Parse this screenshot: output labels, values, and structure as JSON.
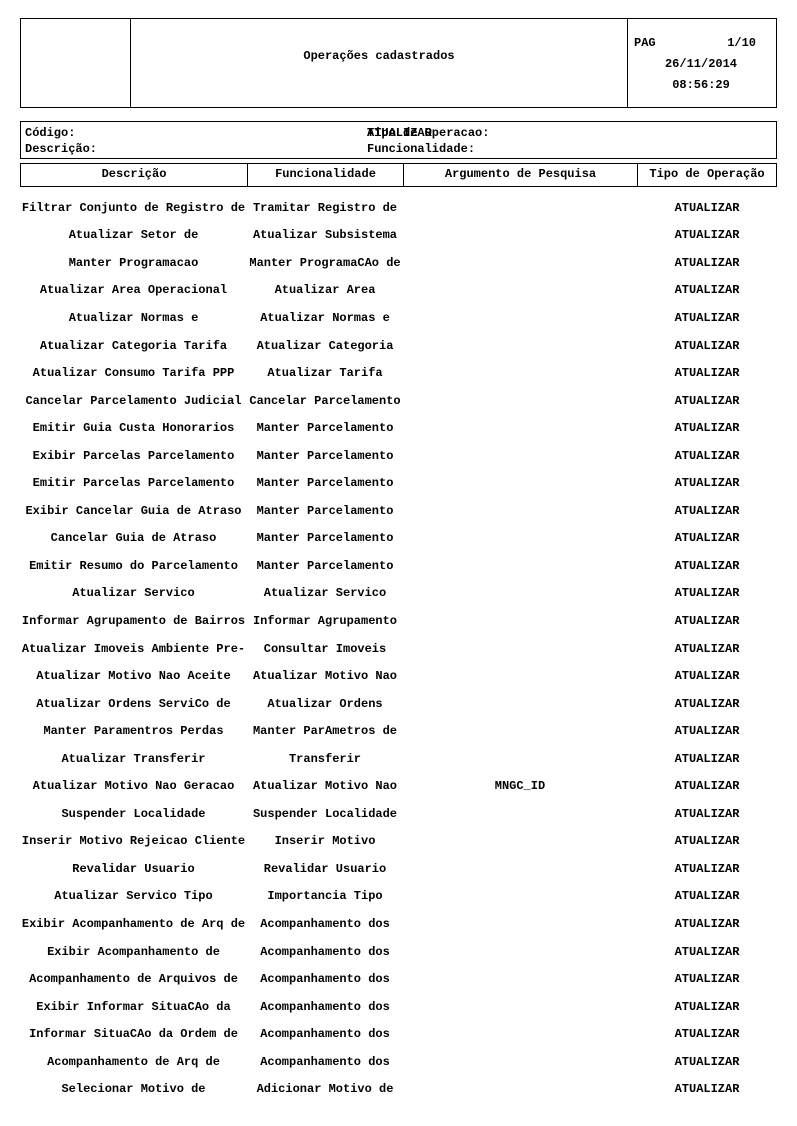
{
  "header": {
    "title": "Operações cadastrados",
    "pag_label": "PAG",
    "page_number": "1/10",
    "date": "26/11/2014",
    "time": "08:56:29"
  },
  "filters": {
    "codigo_label": "Código:",
    "descricao_label": "Descrição:",
    "tipo_operacao_label": "Tipo de Operacao:",
    "tipo_operacao_value": "ATUALIZAR",
    "funcionalidade_label": "Funcionalidade:"
  },
  "table": {
    "columns": [
      "Descrição",
      "Funcionalidade",
      "Argumento de Pesquisa",
      "Tipo de Operação"
    ],
    "rows": [
      {
        "descricao": "Filtrar Conjunto de Registro de",
        "funcionalidade": "Tramitar Registro de",
        "argumento": "",
        "tipo": "ATUALIZAR"
      },
      {
        "descricao": "Atualizar Setor de",
        "funcionalidade": "Atualizar Subsistema",
        "argumento": "",
        "tipo": "ATUALIZAR"
      },
      {
        "descricao": "Manter Programacao",
        "funcionalidade": "Manter ProgramaCAo de",
        "argumento": "",
        "tipo": "ATUALIZAR"
      },
      {
        "descricao": "Atualizar Area Operacional",
        "funcionalidade": "Atualizar Area",
        "argumento": "",
        "tipo": "ATUALIZAR"
      },
      {
        "descricao": "Atualizar Normas e",
        "funcionalidade": "Atualizar Normas e",
        "argumento": "",
        "tipo": "ATUALIZAR"
      },
      {
        "descricao": "Atualizar Categoria Tarifa",
        "funcionalidade": "Atualizar Categoria",
        "argumento": "",
        "tipo": "ATUALIZAR"
      },
      {
        "descricao": "Atualizar Consumo Tarifa PPP",
        "funcionalidade": "Atualizar Tarifa",
        "argumento": "",
        "tipo": "ATUALIZAR"
      },
      {
        "descricao": "Cancelar Parcelamento Judicial",
        "funcionalidade": "Cancelar Parcelamento",
        "argumento": "",
        "tipo": "ATUALIZAR"
      },
      {
        "descricao": "Emitir Guia Custa Honorarios",
        "funcionalidade": "Manter Parcelamento",
        "argumento": "",
        "tipo": "ATUALIZAR"
      },
      {
        "descricao": "Exibir Parcelas Parcelamento",
        "funcionalidade": "Manter Parcelamento",
        "argumento": "",
        "tipo": "ATUALIZAR"
      },
      {
        "descricao": "Emitir Parcelas Parcelamento",
        "funcionalidade": "Manter Parcelamento",
        "argumento": "",
        "tipo": "ATUALIZAR"
      },
      {
        "descricao": "Exibir Cancelar Guia de Atraso",
        "funcionalidade": "Manter Parcelamento",
        "argumento": "",
        "tipo": "ATUALIZAR"
      },
      {
        "descricao": "Cancelar Guia de Atraso",
        "funcionalidade": "Manter Parcelamento",
        "argumento": "",
        "tipo": "ATUALIZAR"
      },
      {
        "descricao": "Emitir Resumo do Parcelamento",
        "funcionalidade": "Manter Parcelamento",
        "argumento": "",
        "tipo": "ATUALIZAR"
      },
      {
        "descricao": "Atualizar Servico",
        "funcionalidade": "Atualizar Servico",
        "argumento": "",
        "tipo": "ATUALIZAR"
      },
      {
        "descricao": "Informar Agrupamento de Bairros",
        "funcionalidade": "Informar Agrupamento",
        "argumento": "",
        "tipo": "ATUALIZAR"
      },
      {
        "descricao": "Atualizar Imoveis Ambiente Pre-",
        "funcionalidade": "Consultar Imoveis",
        "argumento": "",
        "tipo": "ATUALIZAR"
      },
      {
        "descricao": "Atualizar Motivo Nao Aceite",
        "funcionalidade": "Atualizar Motivo Nao",
        "argumento": "",
        "tipo": "ATUALIZAR"
      },
      {
        "descricao": "Atualizar Ordens ServiCo de",
        "funcionalidade": "Atualizar Ordens",
        "argumento": "",
        "tipo": "ATUALIZAR"
      },
      {
        "descricao": "Manter Paramentros Perdas",
        "funcionalidade": "Manter ParAmetros de",
        "argumento": "",
        "tipo": "ATUALIZAR"
      },
      {
        "descricao": "Atualizar Transferir",
        "funcionalidade": "Transferir",
        "argumento": "",
        "tipo": "ATUALIZAR"
      },
      {
        "descricao": "Atualizar Motivo Nao Geracao",
        "funcionalidade": "Atualizar Motivo Nao",
        "argumento": "MNGC_ID",
        "tipo": "ATUALIZAR"
      },
      {
        "descricao": "Suspender Localidade",
        "funcionalidade": "Suspender Localidade",
        "argumento": "",
        "tipo": "ATUALIZAR"
      },
      {
        "descricao": "Inserir Motivo Rejeicao Cliente",
        "funcionalidade": "Inserir Motivo",
        "argumento": "",
        "tipo": "ATUALIZAR"
      },
      {
        "descricao": "Revalidar Usuario",
        "funcionalidade": "Revalidar Usuario",
        "argumento": "",
        "tipo": "ATUALIZAR"
      },
      {
        "descricao": "Atualizar Servico Tipo",
        "funcionalidade": "Importancia Tipo",
        "argumento": "",
        "tipo": "ATUALIZAR"
      },
      {
        "descricao": "Exibir Acompanhamento de Arq de",
        "funcionalidade": "Acompanhamento dos",
        "argumento": "",
        "tipo": "ATUALIZAR"
      },
      {
        "descricao": "Exibir Acompanhamento de",
        "funcionalidade": "Acompanhamento dos",
        "argumento": "",
        "tipo": "ATUALIZAR"
      },
      {
        "descricao": "Acompanhamento de Arquivos de",
        "funcionalidade": "Acompanhamento dos",
        "argumento": "",
        "tipo": "ATUALIZAR"
      },
      {
        "descricao": "Exibir Informar SituaCAo da",
        "funcionalidade": "Acompanhamento dos",
        "argumento": "",
        "tipo": "ATUALIZAR"
      },
      {
        "descricao": "Informar SituaCAo da Ordem de",
        "funcionalidade": "Acompanhamento dos",
        "argumento": "",
        "tipo": "ATUALIZAR"
      },
      {
        "descricao": "Acompanhamento de Arq de",
        "funcionalidade": "Acompanhamento dos",
        "argumento": "",
        "tipo": "ATUALIZAR"
      },
      {
        "descricao": "Selecionar Motivo de",
        "funcionalidade": "Adicionar Motivo de",
        "argumento": "",
        "tipo": "ATUALIZAR"
      }
    ]
  }
}
